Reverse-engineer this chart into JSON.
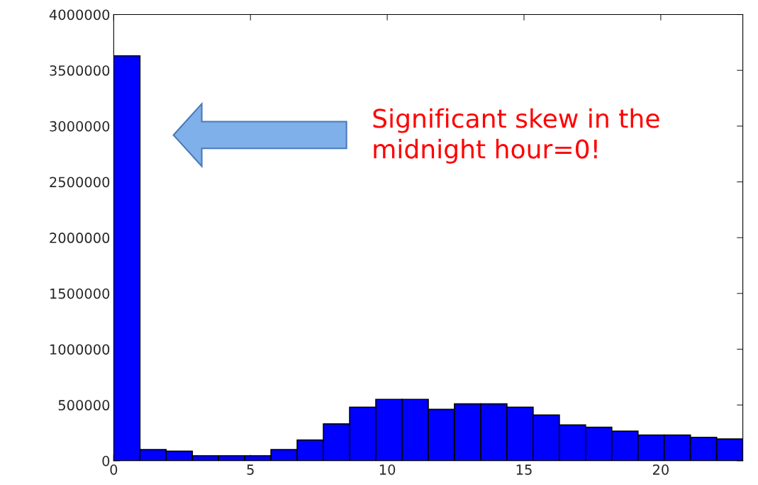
{
  "chart_data": {
    "type": "histogram",
    "bins": [
      0,
      0.958,
      1.917,
      2.875,
      3.833,
      4.792,
      5.75,
      6.708,
      7.667,
      8.625,
      9.583,
      10.542,
      11.5,
      12.458,
      13.417,
      14.375,
      15.333,
      16.292,
      17.25,
      18.208,
      19.167,
      20.125,
      21.083,
      22.042,
      23
    ],
    "values": [
      3630000,
      100000,
      85000,
      45000,
      45000,
      45000,
      100000,
      185000,
      330000,
      480000,
      550000,
      550000,
      460000,
      510000,
      510000,
      480000,
      410000,
      320000,
      300000,
      265000,
      230000,
      230000,
      210000,
      195000
    ],
    "color": "#0000ff",
    "xlim": [
      0,
      23
    ],
    "xticks": [
      0,
      5,
      10,
      15,
      20
    ],
    "ylim": [
      0,
      4000000
    ],
    "yticks": [
      0,
      500000,
      1000000,
      1500000,
      2000000,
      2500000,
      3000000,
      3500000,
      4000000
    ],
    "grid": false,
    "annotations": [
      "Significant skew in the\nmidnight hour=0!"
    ]
  }
}
